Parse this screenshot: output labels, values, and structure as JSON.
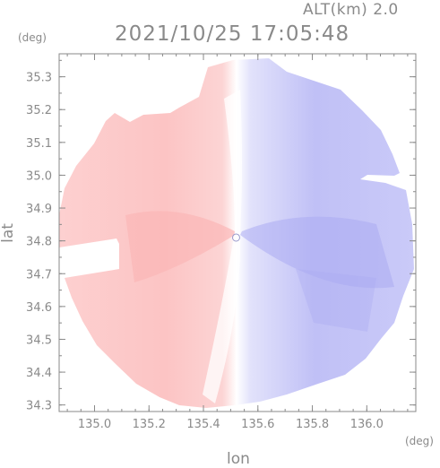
{
  "chart_data": {
    "type": "heatmap",
    "title": "ALT(km) 2.0",
    "subtitle": "2021/10/25 17:05:48",
    "xlabel": "lon",
    "ylabel": "lat",
    "xunit": "(deg)",
    "yunit": "(deg)",
    "xlim": [
      134.87,
      136.18
    ],
    "ylim": [
      34.28,
      35.37
    ],
    "xticks": [
      135.0,
      135.2,
      135.4,
      135.6,
      135.8,
      136.0
    ],
    "xtick_labels": [
      "135.0",
      "135.2",
      "135.4",
      "135.6",
      "135.8",
      "136.0"
    ],
    "yticks": [
      34.3,
      34.4,
      34.5,
      34.6,
      34.7,
      34.8,
      34.9,
      35.0,
      35.1,
      35.2,
      35.3
    ],
    "ytick_labels": [
      "34.3",
      "34.4",
      "34.5",
      "34.6",
      "34.7",
      "34.8",
      "34.9",
      "35.0",
      "35.1",
      "35.2",
      "35.3"
    ],
    "radar_center": [
      135.52,
      34.81
    ],
    "colors": {
      "approaching": "#b4b4f4",
      "receding": "#fcbcbc",
      "axis": "#8a8a8a"
    }
  }
}
